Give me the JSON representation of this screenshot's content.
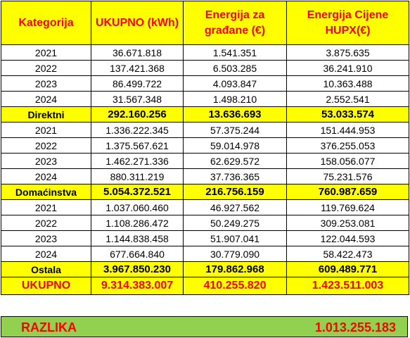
{
  "header": {
    "col1": "Kategorija",
    "col2": "UKUPNO (kWh)",
    "col3": "Energija za građane (€)",
    "col4": "Energija Cijene HUPX(€)"
  },
  "groups": [
    {
      "rows": [
        {
          "year": "2021",
          "kwh": "36.671.818",
          "gradjani": "1.541.351",
          "hupx": "3.875.635"
        },
        {
          "year": "2022",
          "kwh": "137.421.368",
          "gradjani": "6.503.285",
          "hupx": "36.241.910"
        },
        {
          "year": "2023",
          "kwh": "86.499.722",
          "gradjani": "4.093.847",
          "hupx": "10.363.488"
        },
        {
          "year": "2024",
          "kwh": "31.567.348",
          "gradjani": "1.498.210",
          "hupx": "2.552.541"
        }
      ],
      "subtotal": {
        "label": "Direktni",
        "kwh": "292.160.256",
        "gradjani": "13.636.693",
        "hupx": "53.033.574"
      }
    },
    {
      "rows": [
        {
          "year": "2021",
          "kwh": "1.336.222.345",
          "gradjani": "57.375.244",
          "hupx": "151.444.953"
        },
        {
          "year": "2022",
          "kwh": "1.375.567.621",
          "gradjani": "59.014.978",
          "hupx": "376.255.053"
        },
        {
          "year": "2023",
          "kwh": "1.462.271.336",
          "gradjani": "62.629.572",
          "hupx": "158.056.077"
        },
        {
          "year": "2024",
          "kwh": "880.311.219",
          "gradjani": "37.736.365",
          "hupx": "75.231.576"
        }
      ],
      "subtotal": {
        "label": "Domaćinstva",
        "kwh": "5.054.372.521",
        "gradjani": "216.756.159",
        "hupx": "760.987.659"
      }
    },
    {
      "rows": [
        {
          "year": "2021",
          "kwh": "1.037.060.460",
          "gradjani": "46.927.562",
          "hupx": "119.769.624"
        },
        {
          "year": "2022",
          "kwh": "1.108.286.472",
          "gradjani": "50.249.275",
          "hupx": "309.253.081"
        },
        {
          "year": "2023",
          "kwh": "1.144.838.458",
          "gradjani": "51.907.041",
          "hupx": "122.044.593"
        },
        {
          "year": "2024",
          "kwh": "677.664.840",
          "gradjani": "30.779.090",
          "hupx": "58.422.473"
        }
      ],
      "subtotal": {
        "label": "Ostala",
        "kwh": "3.967.850.230",
        "gradjani": "179.862.968",
        "hupx": "609.489.771"
      }
    }
  ],
  "total": {
    "label": "UKUPNO",
    "kwh": "9.314.383.007",
    "gradjani": "410.255.820",
    "hupx": "1.423.511.003"
  },
  "razlika": {
    "label": "RAZLIKA",
    "value": "1.013.255.183"
  },
  "colors": {
    "header_bg": "#ffff00",
    "header_text": "#ff0000",
    "razlika_bg": "#92d050"
  }
}
